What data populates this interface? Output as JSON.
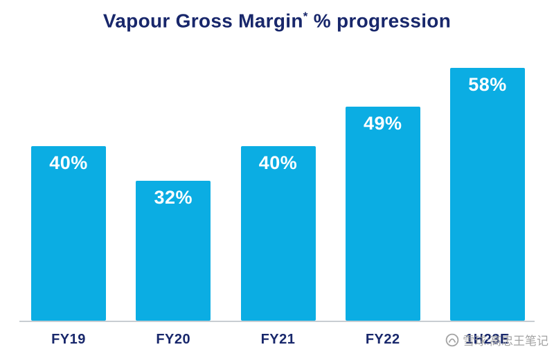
{
  "title": {
    "main": "Vapour Gross Margin",
    "asterisk": "*",
    "rest": " % progression",
    "full": "Vapour Gross Margin* % progression"
  },
  "chart_data": {
    "type": "bar",
    "categories": [
      "FY19",
      "FY20",
      "FY21",
      "FY22",
      "1H23E"
    ],
    "values": [
      40,
      32,
      40,
      49,
      58
    ],
    "value_labels": [
      "40%",
      "32%",
      "40%",
      "49%",
      "58%"
    ],
    "title": "Vapour Gross Margin* % progression",
    "xlabel": "",
    "ylabel": "",
    "ylim": [
      0,
      60
    ],
    "grid": false,
    "legend": "none",
    "bar_color": "#0BADE3",
    "value_label_color": "#FFFFFF",
    "value_label_position": "inside-top"
  },
  "colors": {
    "title": "#18276B",
    "axis_line": "#C8CDD2",
    "bar": "#0BADE3",
    "x_labels": "#18276B",
    "watermark": "#A3A3A3",
    "background": "#FFFFFF"
  },
  "watermark": {
    "text": "雪球:高忠王笔记",
    "icon": "xueqiu-logo"
  }
}
